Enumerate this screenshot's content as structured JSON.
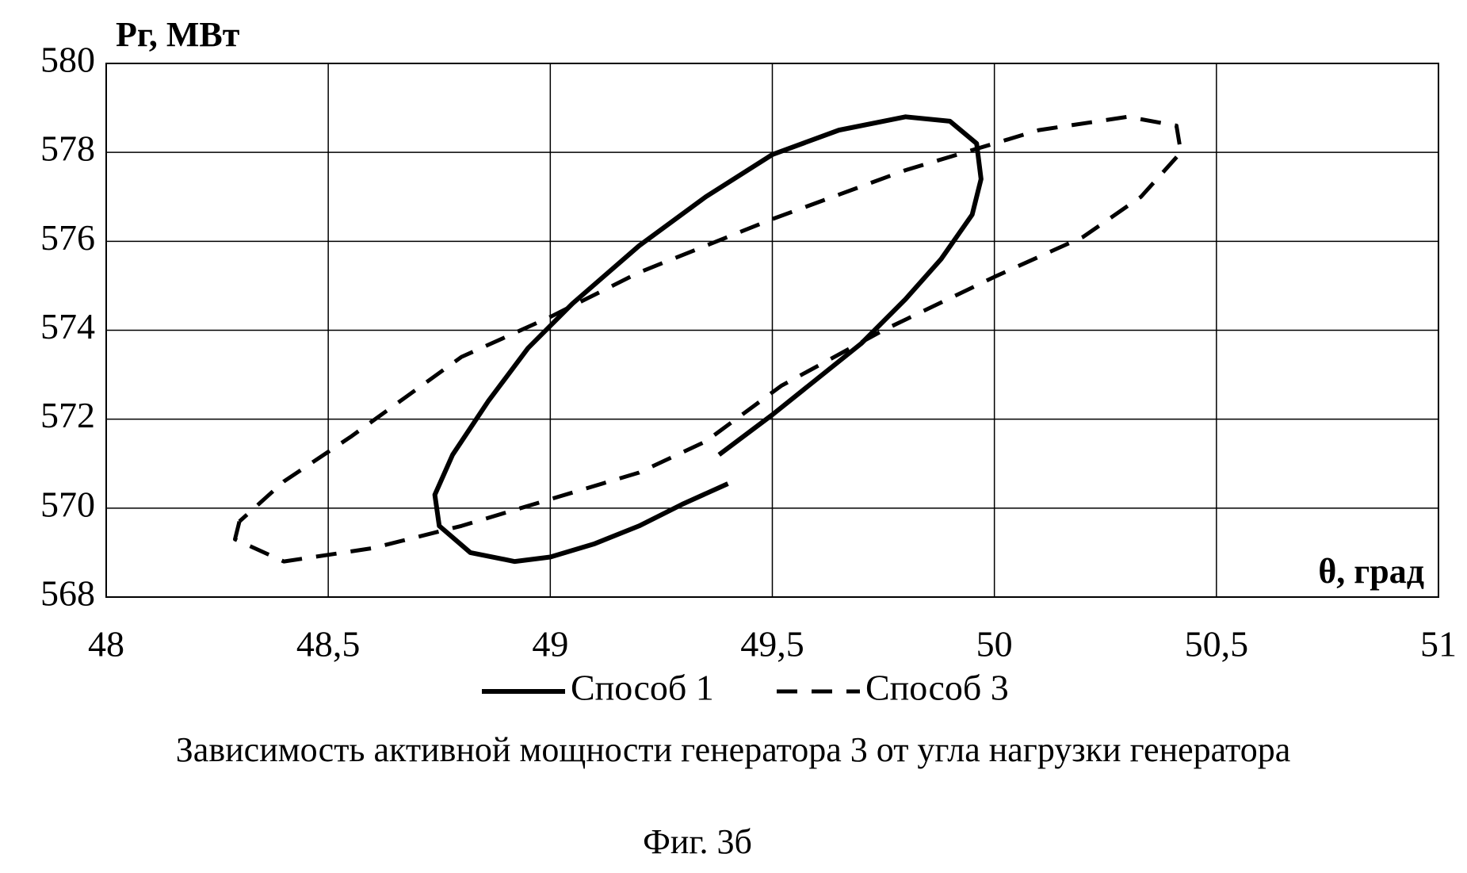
{
  "chart_data": {
    "type": "line",
    "title": "Зависимость активной мощности генератора 3 от угла нагрузки генератора",
    "caption": "Фиг. 3б",
    "y_label": "Pг, МВт",
    "x_label": "θ, град",
    "xlim": [
      48,
      51
    ],
    "ylim": [
      568,
      580
    ],
    "xticks": [
      48,
      {
        "value": 48.5,
        "label": "48,5"
      },
      49,
      {
        "value": 49.5,
        "label": "49,5"
      },
      50,
      {
        "value": 50.5,
        "label": "50,5"
      },
      51
    ],
    "yticks": [
      568,
      570,
      572,
      574,
      576,
      578,
      580
    ],
    "grid": true,
    "series": [
      {
        "name": "Способ 1",
        "color": "#000000",
        "dash": false,
        "x": [
          49.4,
          49.3,
          49.2,
          49.1,
          49.0,
          48.92,
          48.82,
          48.75,
          48.74,
          48.78,
          48.86,
          48.95,
          49.05,
          49.2,
          49.35,
          49.5,
          49.65,
          49.8,
          49.9,
          49.96,
          49.97,
          49.95,
          49.88,
          49.8,
          49.7,
          49.6,
          49.5,
          49.38
        ],
        "values": [
          570.55,
          570.1,
          569.6,
          569.2,
          568.9,
          568.8,
          569.0,
          569.6,
          570.3,
          571.2,
          572.4,
          573.6,
          574.6,
          575.9,
          577.0,
          577.95,
          578.5,
          578.8,
          578.7,
          578.2,
          577.4,
          576.6,
          575.6,
          574.7,
          573.7,
          572.9,
          572.1,
          571.2
        ]
      },
      {
        "name": "Способ 3",
        "color": "#000000",
        "dash": true,
        "x": [
          48.3,
          48.29,
          48.4,
          48.6,
          48.8,
          49.0,
          49.2,
          49.35,
          49.52,
          49.75,
          50.0,
          50.2,
          50.33,
          50.42,
          50.41,
          50.3,
          50.1,
          50.0,
          49.8,
          49.5,
          49.2,
          49.0,
          48.8,
          48.55,
          48.4,
          48.3
        ],
        "values": [
          569.7,
          569.3,
          568.8,
          569.1,
          569.6,
          570.2,
          570.8,
          571.5,
          572.75,
          574.0,
          575.2,
          576.1,
          577.0,
          578.0,
          578.6,
          578.8,
          578.5,
          578.2,
          577.6,
          576.5,
          575.3,
          574.3,
          573.4,
          571.6,
          570.6,
          569.7
        ]
      }
    ]
  }
}
